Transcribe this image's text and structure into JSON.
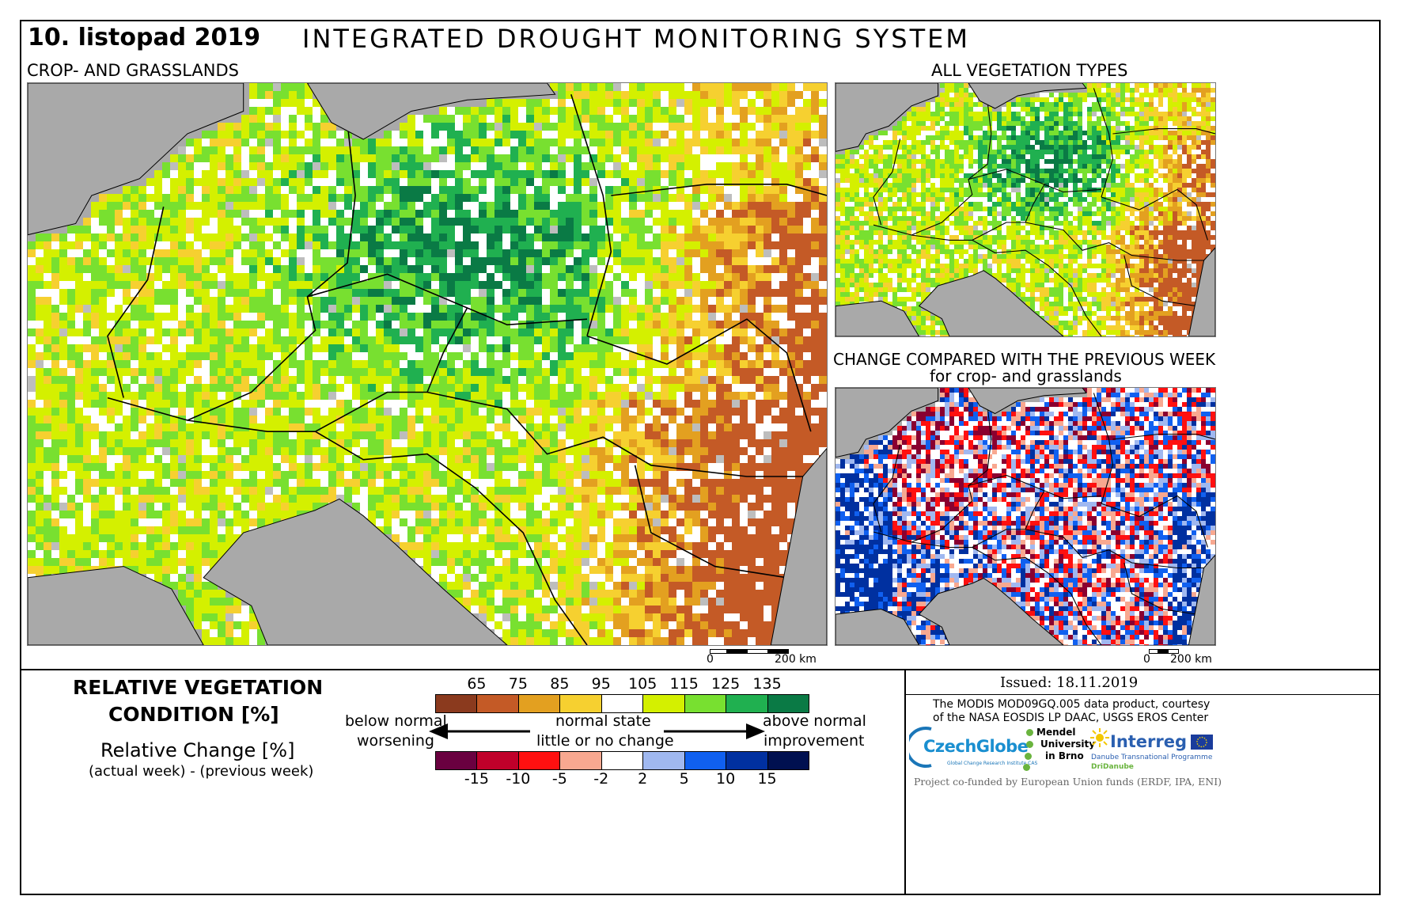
{
  "header": {
    "date": "10. listopad 2019",
    "title": "INTEGRATED DROUGHT MONITORING SYSTEM"
  },
  "main_map": {
    "label": "CROP- AND GRASSLANDS",
    "scale_zero": "0",
    "scale_end": "200 km"
  },
  "veg_map": {
    "label": "ALL VEGETATION TYPES",
    "scale_zero": "0",
    "scale_end": "200 km"
  },
  "change_map": {
    "label_line1": "CHANGE COMPARED WITH THE PREVIOUS WEEK",
    "label_line2": "for crop- and grasslands"
  },
  "legend": {
    "rvc_title_line1": "RELATIVE VEGETATION",
    "rvc_title_line2": "CONDITION [%]",
    "change_title": "Relative Change [%]",
    "change_subtitle": "(actual week) - (previous week)",
    "rvc_ticks": [
      "65",
      "75",
      "85",
      "95",
      "105",
      "115",
      "125",
      "135"
    ],
    "rvc_colors": [
      "#8b3a1e",
      "#c45a26",
      "#e3a020",
      "#f6d030",
      "#ffffff",
      "#d4f000",
      "#78e030",
      "#20b050",
      "#0a7a45"
    ],
    "change_ticks": [
      "-15",
      "-10",
      "-5",
      "-2",
      "2",
      "5",
      "10",
      "15"
    ],
    "change_colors": [
      "#6a0040",
      "#c0002a",
      "#ff1010",
      "#f8a890",
      "#ffffff",
      "#a0b8f0",
      "#1060f0",
      "#0030a0",
      "#001050"
    ],
    "below_normal": "below normal",
    "worsening": "worsening",
    "normal_state": "normal state",
    "little_change": "little or no change",
    "above_normal": "above normal",
    "improvement": "improvement"
  },
  "info": {
    "issued": "Issued: 18.11.2019",
    "credit_line1": "The MODIS MOD09GQ.005 data product, courtesy",
    "credit_line2": "of the NASA EOSDIS LP DAAC, USGS EROS Center",
    "czechglobe": "CzechGlobe",
    "czechglobe_sub": "Global Change Research Institute CAS",
    "mendel_line1": "Mendel",
    "mendel_line2": "University",
    "mendel_line3": "in Brno",
    "interreg": "Interreg",
    "interreg_sub1": "Danube Transnational Programme",
    "interreg_sub2": "DriDanube",
    "funding": "Project co-funded by European Union funds (ERDF, IPA, ENI)"
  },
  "colors": {
    "sea": "#a9a9a9",
    "border": "#000000"
  }
}
